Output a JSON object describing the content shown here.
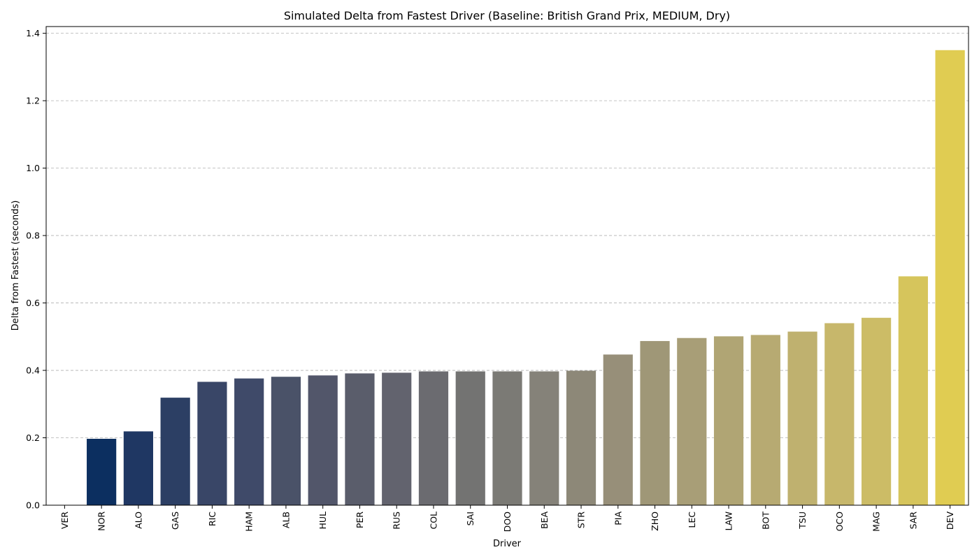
{
  "chart_data": {
    "type": "bar",
    "title": "Simulated Delta from Fastest Driver (Baseline: British Grand Prix, MEDIUM, Dry)",
    "xlabel": "Driver",
    "ylabel": "Delta from Fastest (seconds)",
    "ylim": [
      0,
      1.42
    ],
    "yticks": [
      0.0,
      0.2,
      0.4,
      0.6,
      0.8,
      1.0,
      1.2,
      1.4
    ],
    "grid": true,
    "categories": [
      "VER",
      "NOR",
      "ALO",
      "GAS",
      "RIC",
      "HAM",
      "ALB",
      "HUL",
      "PER",
      "RUS",
      "COL",
      "SAI",
      "DOO",
      "BEA",
      "STR",
      "PIA",
      "ZHO",
      "LEC",
      "LAW",
      "BOT",
      "TSU",
      "OCO",
      "MAG",
      "SAR",
      "DEV"
    ],
    "values": [
      0.0,
      0.197,
      0.219,
      0.319,
      0.366,
      0.376,
      0.381,
      0.385,
      0.391,
      0.393,
      0.397,
      0.397,
      0.397,
      0.397,
      0.399,
      0.447,
      0.487,
      0.496,
      0.501,
      0.505,
      0.515,
      0.54,
      0.556,
      0.679,
      1.35
    ],
    "colors": [
      "#00224e",
      "#0c2f60",
      "#1f3763",
      "#2c3f64",
      "#394667",
      "#3f4a69",
      "#4a5268",
      "#52566a",
      "#5a5d6b",
      "#62636e",
      "#6b6b70",
      "#737372",
      "#7b7a75",
      "#858279",
      "#8d8878",
      "#978f79",
      "#9f9777",
      "#a89e77",
      "#b0a574",
      "#b7aa72",
      "#bfb16f",
      "#c7b76b",
      "#ccbc66",
      "#d6c55c",
      "#e0cc52"
    ]
  }
}
